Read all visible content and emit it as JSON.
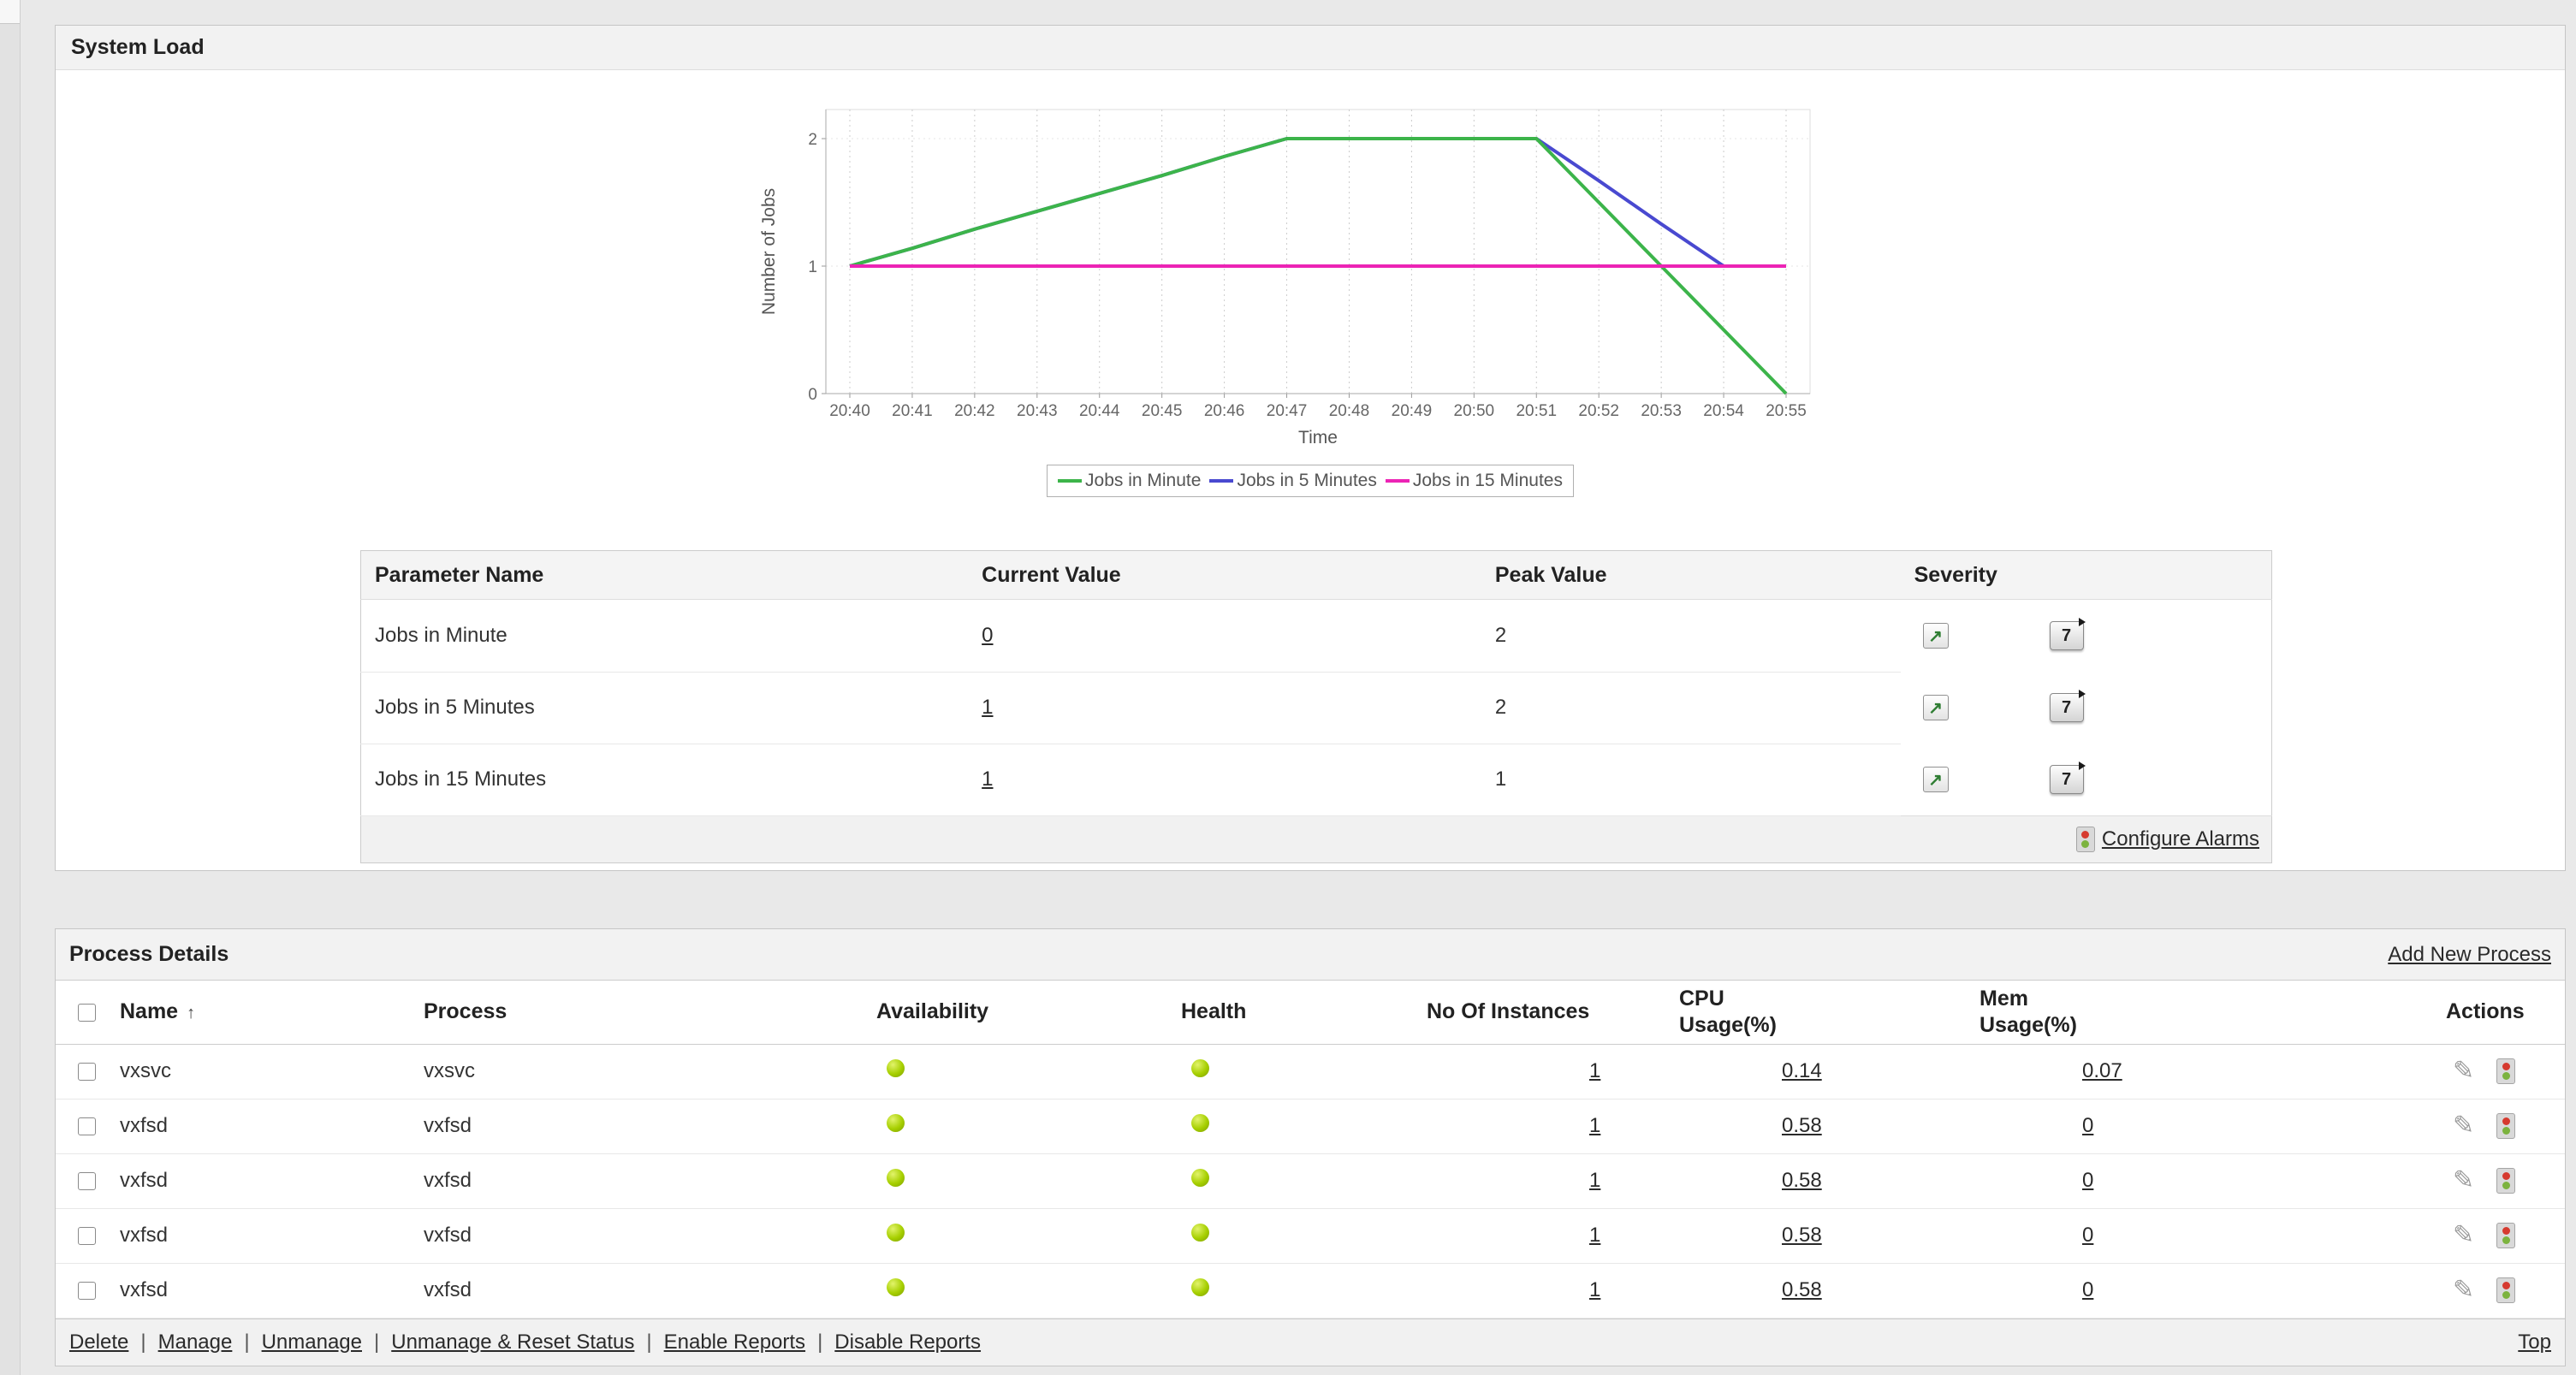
{
  "system_load": {
    "title": "System Load",
    "chart_data": {
      "type": "line",
      "x": [
        "20:40",
        "20:41",
        "20:42",
        "20:43",
        "20:44",
        "20:45",
        "20:46",
        "20:47",
        "20:48",
        "20:49",
        "20:50",
        "20:51",
        "20:52",
        "20:53",
        "20:54",
        "20:55"
      ],
      "series": [
        {
          "name": "Jobs in Minute",
          "color": "#3cb44a",
          "values": [
            1,
            1.14,
            1.29,
            1.43,
            1.57,
            1.71,
            1.86,
            2,
            2,
            2,
            2,
            2,
            1.5,
            1,
            0.5,
            0
          ]
        },
        {
          "name": "Jobs in 5 Minutes",
          "color": "#4949d0",
          "values": [
            1,
            1.14,
            1.29,
            1.43,
            1.57,
            1.71,
            1.86,
            2,
            2,
            2,
            2,
            2,
            1.67,
            1.33,
            1,
            1
          ]
        },
        {
          "name": "Jobs in 15 Minutes",
          "color": "#ec24b5",
          "values": [
            1,
            1,
            1,
            1,
            1,
            1,
            1,
            1,
            1,
            1,
            1,
            1,
            1,
            1,
            1,
            1
          ]
        }
      ],
      "xlabel": "Time",
      "ylabel": "Number of Jobs",
      "ylim": [
        0,
        2
      ],
      "yticks": [
        0,
        1,
        2
      ],
      "legend_position": "bottom",
      "grid": "dotted"
    },
    "table": {
      "headers": [
        "Parameter Name",
        "Current Value",
        "Peak Value",
        "Severity"
      ],
      "rows": [
        {
          "parameter": "Jobs in Minute",
          "current_value": "0",
          "peak_value": "2"
        },
        {
          "parameter": "Jobs in 5 Minutes",
          "current_value": "1",
          "peak_value": "2"
        },
        {
          "parameter": "Jobs in 15 Minutes",
          "current_value": "1",
          "peak_value": "1"
        }
      ],
      "history_button_label": "7",
      "severity_glyph": "↗",
      "configure_alarms_label": "Configure Alarms"
    }
  },
  "process_details": {
    "title": "Process Details",
    "add_new_process_label": "Add New Process",
    "headers": {
      "name": "Name",
      "sort_arrow": "↑",
      "process": "Process",
      "availability": "Availability",
      "health": "Health",
      "instances": "No Of Instances",
      "cpu_line1": "CPU",
      "cpu_line2": "Usage(%)",
      "mem_line1": "Mem",
      "mem_line2": "Usage(%)",
      "actions": "Actions"
    },
    "rows": [
      {
        "name": "vxsvc",
        "process": "vxsvc",
        "instances": "1",
        "cpu": "0.14",
        "mem": "0.07"
      },
      {
        "name": "vxfsd",
        "process": "vxfsd",
        "instances": "1",
        "cpu": "0.58",
        "mem": "0"
      },
      {
        "name": "vxfsd",
        "process": "vxfsd",
        "instances": "1",
        "cpu": "0.58",
        "mem": "0"
      },
      {
        "name": "vxfsd",
        "process": "vxfsd",
        "instances": "1",
        "cpu": "0.58",
        "mem": "0"
      },
      {
        "name": "vxfsd",
        "process": "vxfsd",
        "instances": "1",
        "cpu": "0.58",
        "mem": "0"
      }
    ],
    "pencil_glyph": "✎",
    "footer": {
      "separator": "|",
      "links": [
        "Delete",
        "Manage",
        "Unmanage",
        "Unmanage & Reset Status",
        "Enable Reports",
        "Disable Reports"
      ],
      "top_label": "Top"
    }
  }
}
